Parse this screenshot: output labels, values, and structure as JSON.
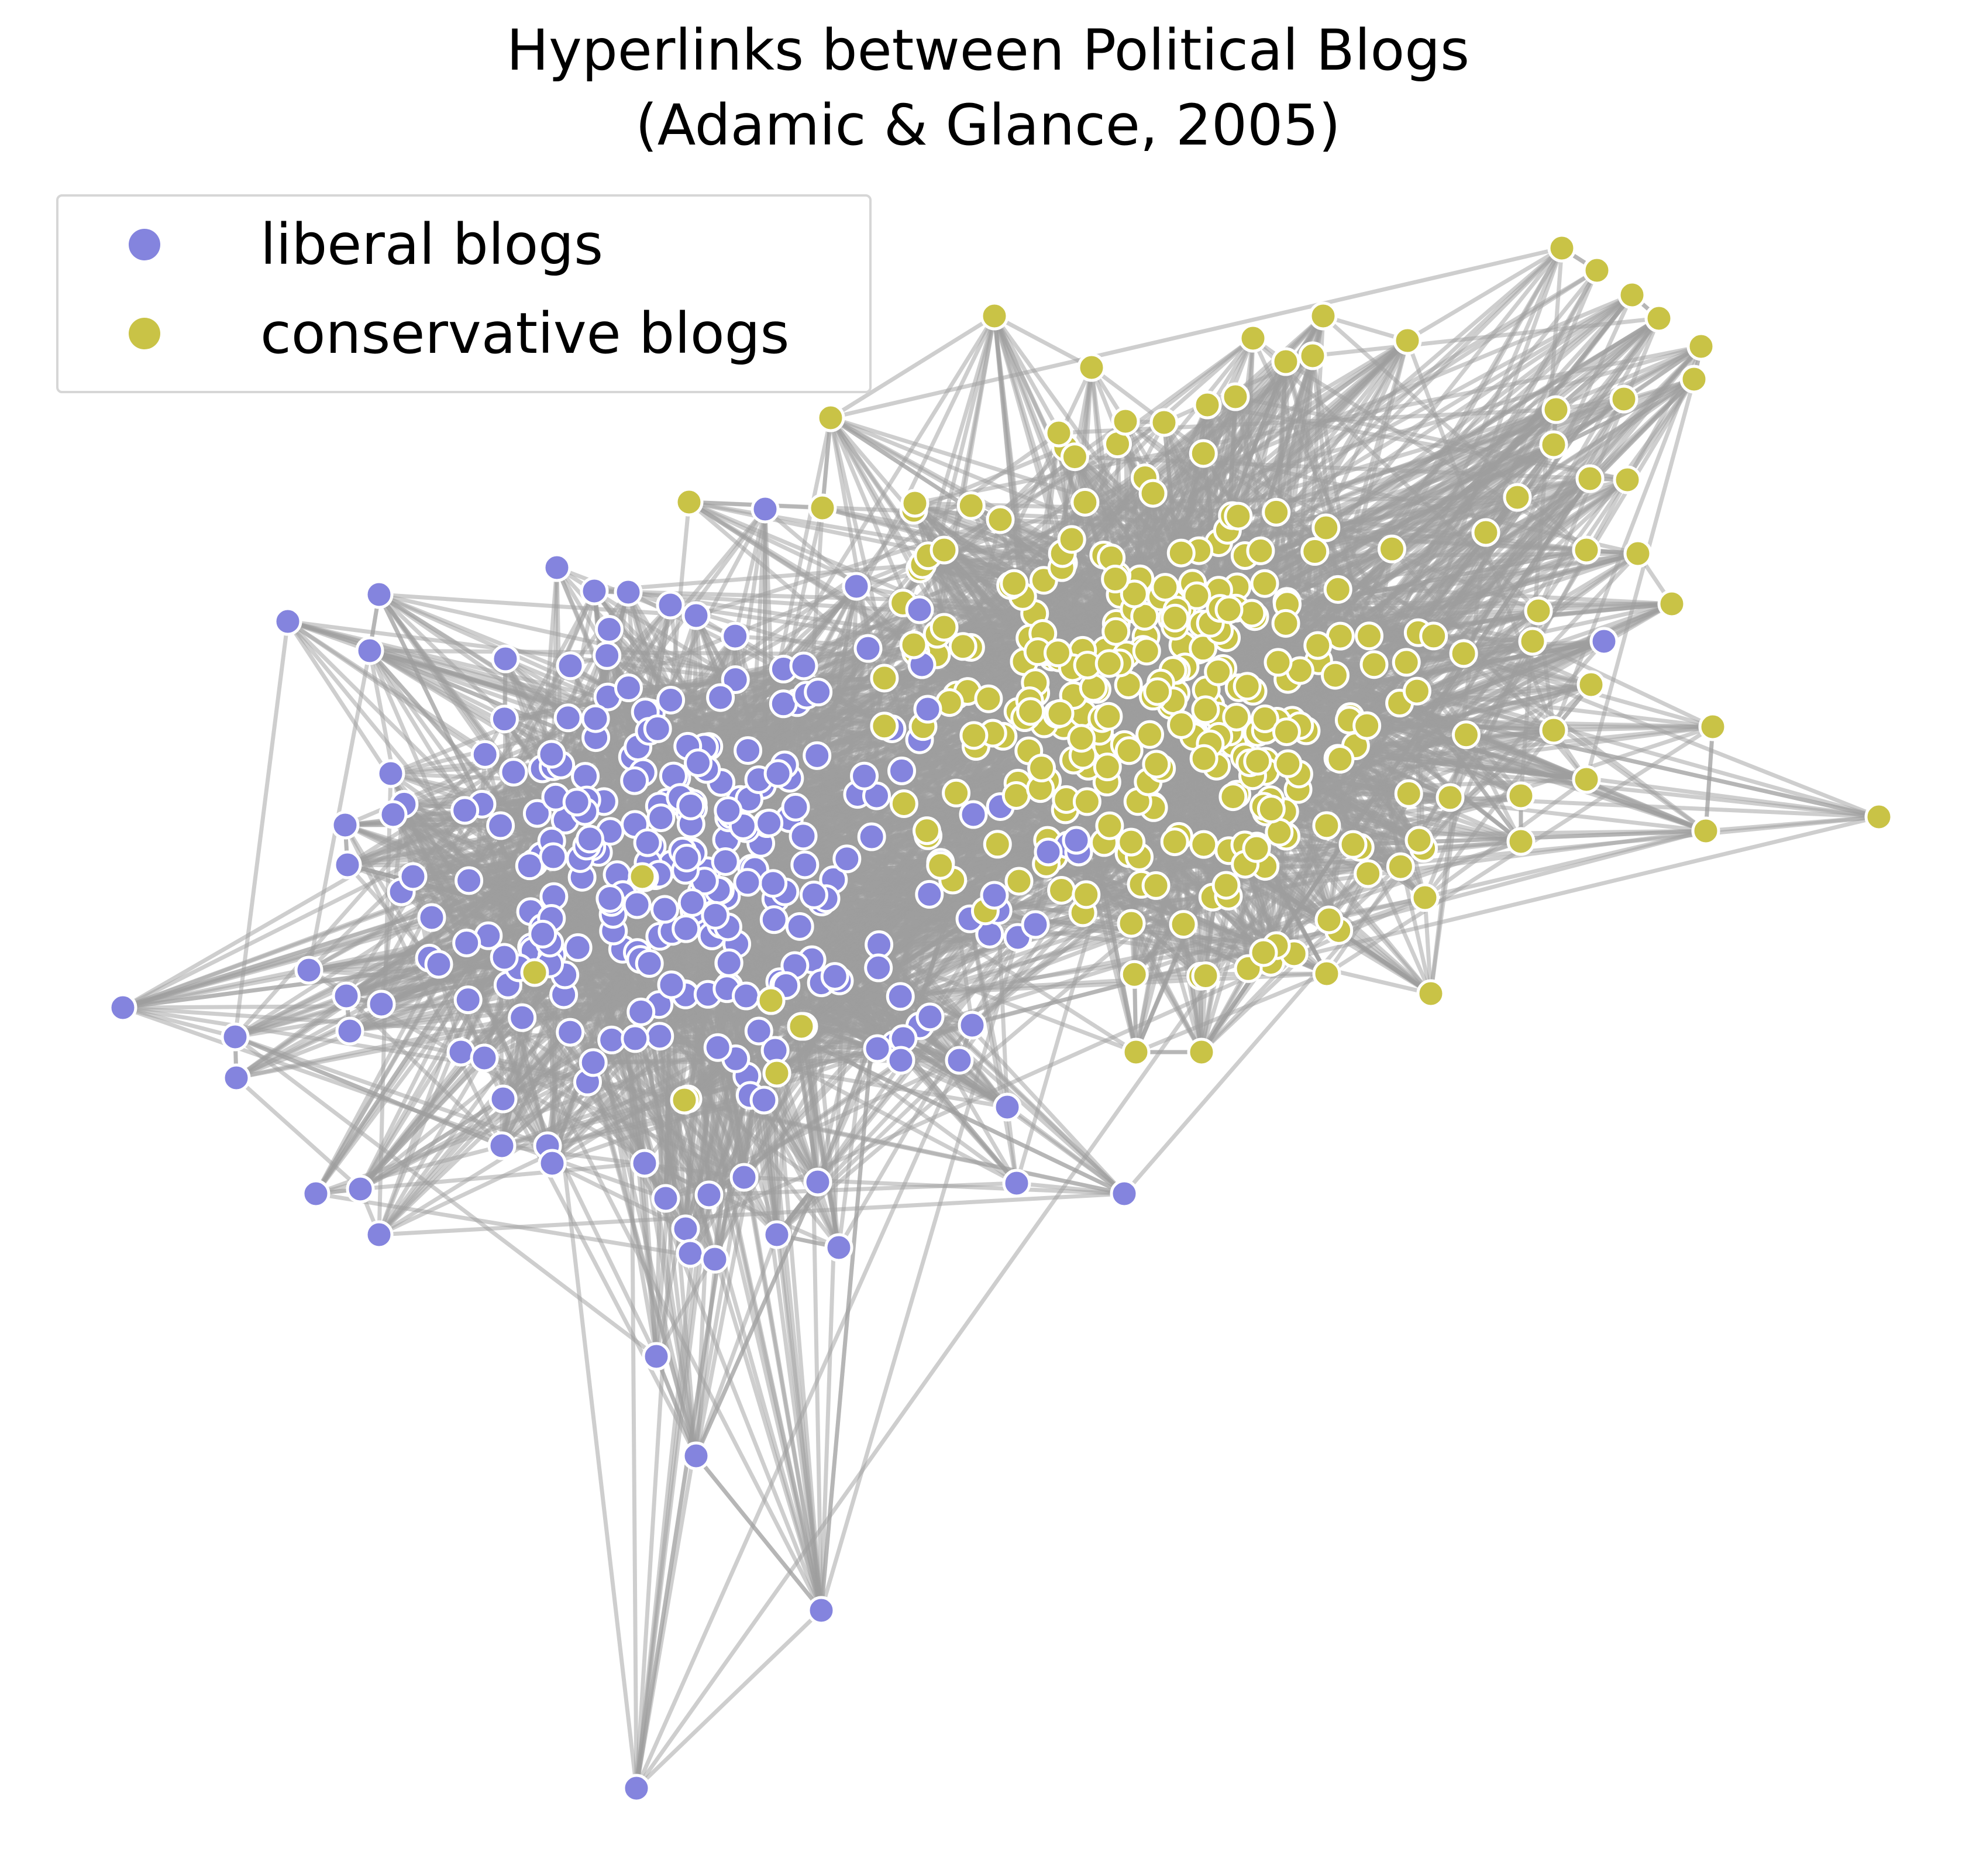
{
  "chart_data": {
    "type": "network",
    "title": "Hyperlinks between Political Blogs\n(Adamic & Glance, 2005)",
    "title_lines": [
      "Hyperlinks between Political Blogs",
      "(Adamic & Glance, 2005)"
    ],
    "legend": {
      "placement": "top-left",
      "entries": [
        {
          "label": "liberal blogs",
          "color": "#8484de"
        },
        {
          "label": "conservative blogs",
          "color": "#c9c346"
        }
      ]
    },
    "groups": [
      {
        "name": "liberal blogs",
        "color": "#8484de"
      },
      {
        "name": "conservative blogs",
        "color": "#c9c346"
      }
    ],
    "edge_color": "#9e9e9e",
    "node_outline_color": "#ffffff",
    "axes": "off",
    "grid": false
  }
}
